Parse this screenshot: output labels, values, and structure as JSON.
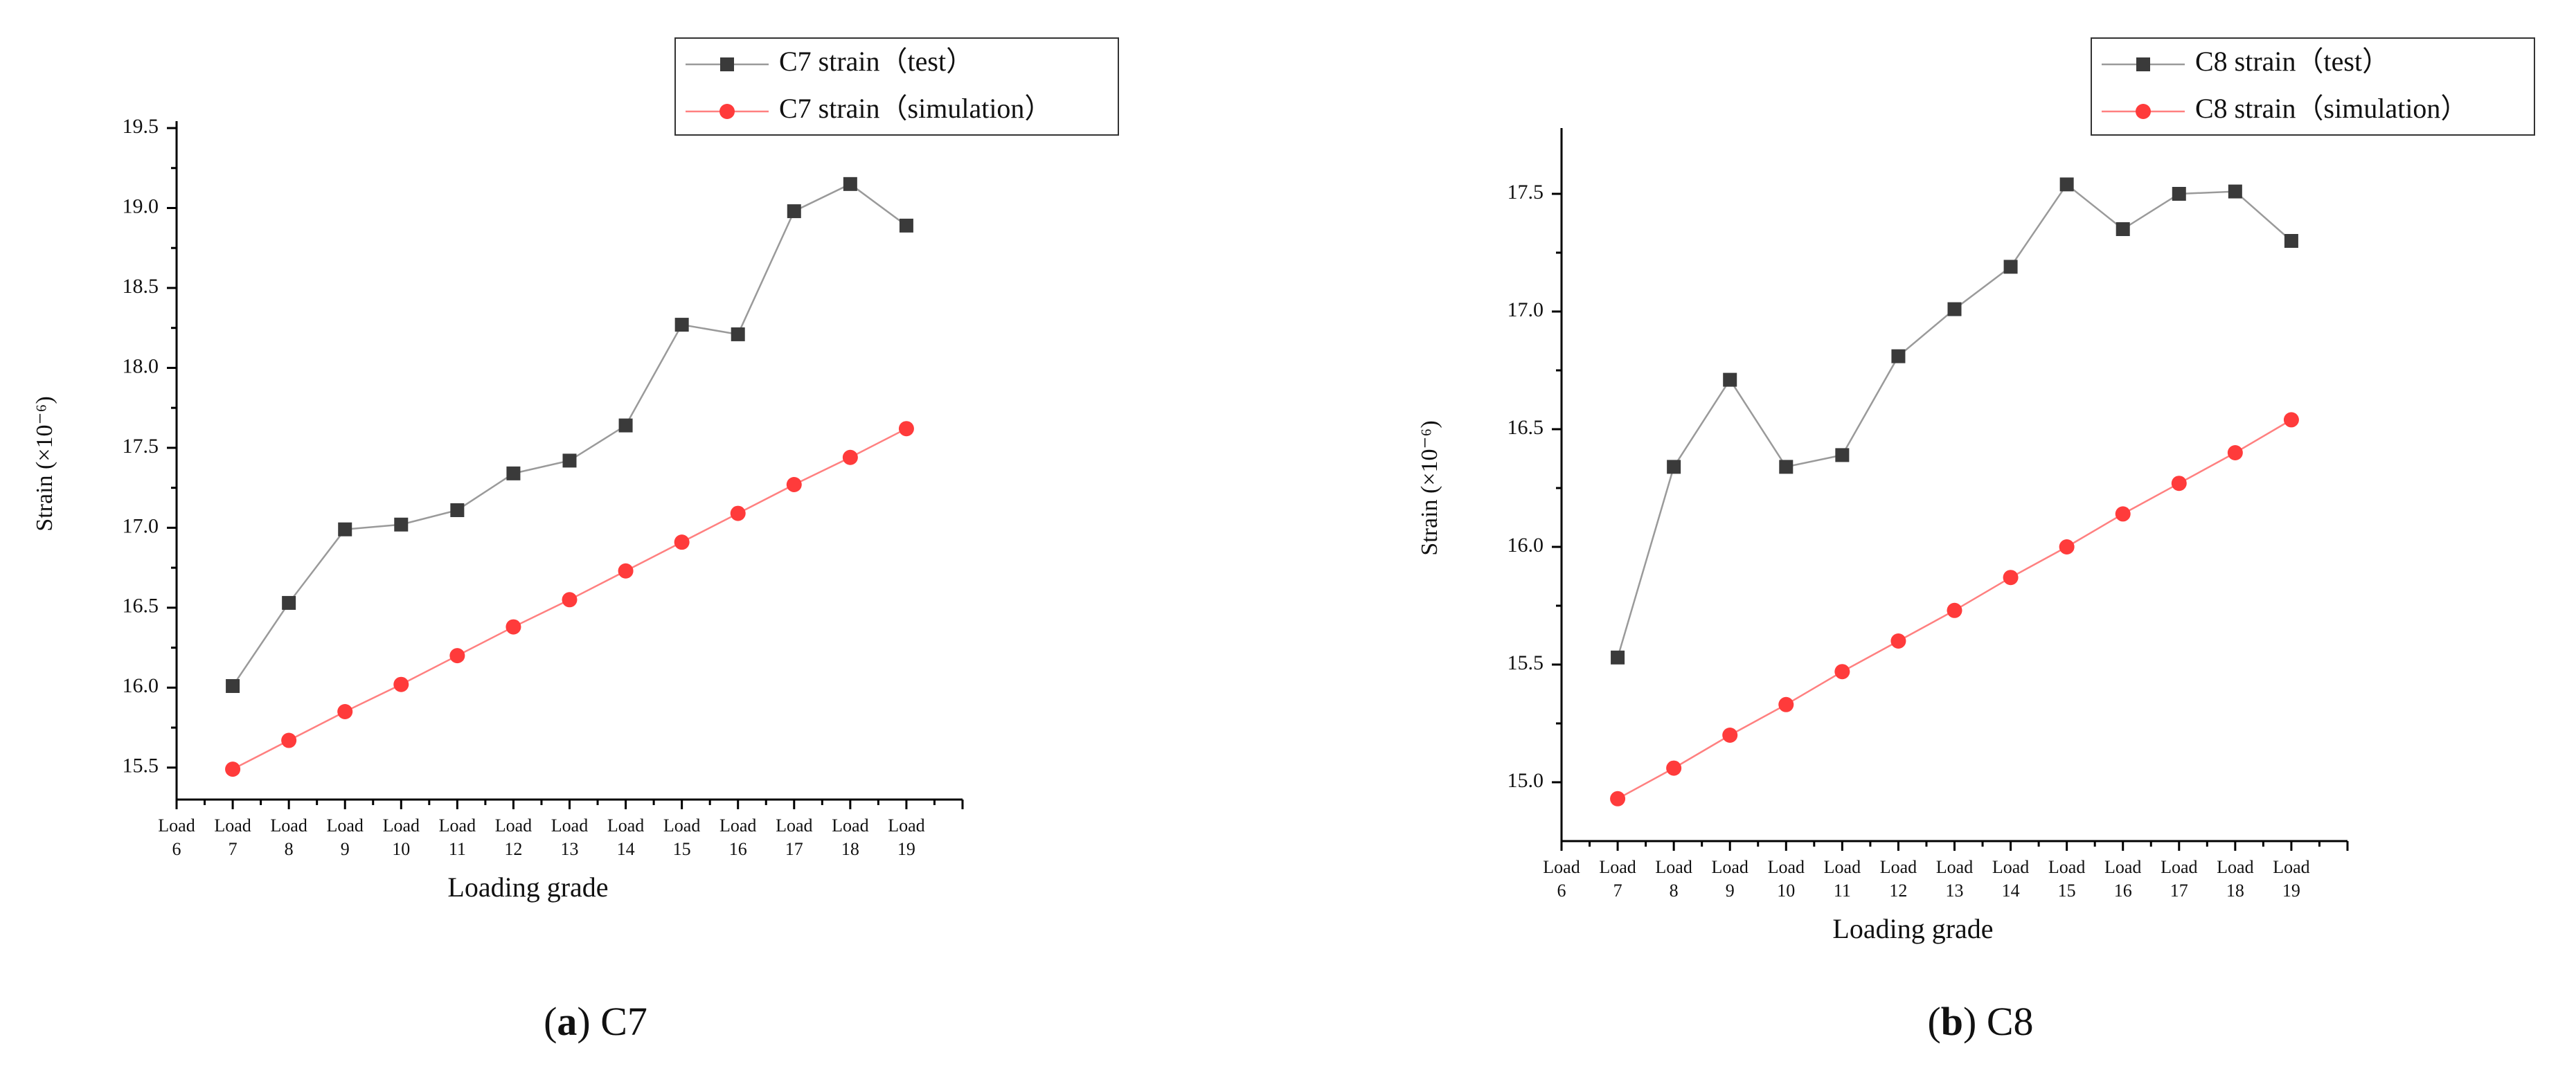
{
  "colors": {
    "test": "#3a3a3a",
    "test_line": "#9a9a9a",
    "simulation": "#ff3b3b",
    "simulation_line": "#ff8080"
  },
  "x_axis_label": "Loading grade",
  "y_axis_label": "Strain (×10⁻⁶)",
  "x_tick_word": "Load",
  "captions": [
    {
      "letter": "a",
      "name": "C7"
    },
    {
      "letter": "b",
      "name": "C8"
    }
  ],
  "chart_data": [
    {
      "type": "line",
      "title": "",
      "xlabel": "Loading grade",
      "ylabel": "Strain (×10⁻⁶)",
      "categories": [
        "6",
        "7",
        "8",
        "9",
        "10",
        "11",
        "12",
        "13",
        "14",
        "15",
        "16",
        "17",
        "18",
        "19"
      ],
      "ylim": [
        15.3,
        19.5
      ],
      "yticks": [
        15.5,
        16.0,
        16.5,
        17.0,
        17.5,
        18.0,
        18.5,
        19.0,
        19.5
      ],
      "ytick_labels": [
        "15.5",
        "16.0",
        "16.5",
        "17.0",
        "17.5",
        "18.0",
        "18.5",
        "19.0",
        "19.5"
      ],
      "legend_position": "top-right",
      "series": [
        {
          "name": "C7 strain（test）",
          "marker": "square",
          "x": [
            7,
            8,
            9,
            10,
            11,
            12,
            13,
            14,
            15,
            16,
            17,
            18,
            19
          ],
          "values": [
            16.01,
            16.53,
            16.99,
            17.02,
            17.11,
            17.34,
            17.42,
            17.64,
            18.27,
            18.21,
            18.98,
            19.15,
            18.89
          ]
        },
        {
          "name": "C7 strain（simulation）",
          "marker": "circle",
          "x": [
            7,
            8,
            9,
            10,
            11,
            12,
            13,
            14,
            15,
            16,
            17,
            18,
            19
          ],
          "values": [
            15.49,
            15.67,
            15.85,
            16.02,
            16.2,
            16.38,
            16.55,
            16.73,
            16.91,
            17.09,
            17.27,
            17.44,
            17.62
          ]
        }
      ]
    },
    {
      "type": "line",
      "title": "",
      "xlabel": "Loading grade",
      "ylabel": "Strain (×10⁻⁶)",
      "categories": [
        "6",
        "7",
        "8",
        "9",
        "10",
        "11",
        "12",
        "13",
        "14",
        "15",
        "16",
        "17",
        "18",
        "19"
      ],
      "ylim": [
        14.75,
        17.75
      ],
      "yticks": [
        15.0,
        15.5,
        16.0,
        16.5,
        17.0,
        17.5
      ],
      "ytick_labels": [
        "15.0",
        "15.5",
        "16.0",
        "16.5",
        "17.0",
        "17.5"
      ],
      "legend_position": "top-right",
      "series": [
        {
          "name": "C8 strain（test）",
          "marker": "square",
          "x": [
            7,
            8,
            9,
            10,
            11,
            12,
            13,
            14,
            15,
            16,
            17,
            18,
            19
          ],
          "values": [
            15.53,
            16.34,
            16.71,
            16.34,
            16.39,
            16.81,
            17.01,
            17.19,
            17.54,
            17.35,
            17.5,
            17.51,
            17.3
          ]
        },
        {
          "name": "C8 strain（simulation）",
          "marker": "circle",
          "x": [
            7,
            8,
            9,
            10,
            11,
            12,
            13,
            14,
            15,
            16,
            17,
            18,
            19
          ],
          "values": [
            14.93,
            15.06,
            15.2,
            15.33,
            15.47,
            15.6,
            15.73,
            15.87,
            16.0,
            16.14,
            16.27,
            16.4,
            16.54
          ]
        }
      ]
    }
  ]
}
